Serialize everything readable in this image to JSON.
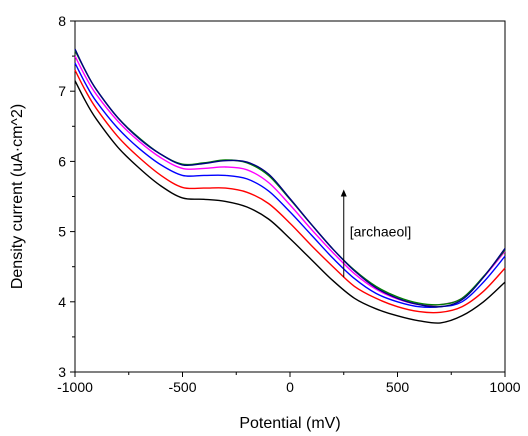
{
  "chart_data": {
    "type": "line",
    "xlabel": "Potential (mV)",
    "ylabel": "Density current (uA·cm^2)",
    "xlim": [
      -1000,
      1000
    ],
    "ylim": [
      3,
      8
    ],
    "x_ticks": [
      -1000,
      -500,
      0,
      500,
      1000
    ],
    "y_ticks": [
      3,
      4,
      5,
      6,
      7,
      8
    ],
    "grid": false,
    "annotation": {
      "text": "[archaeol]",
      "arrow_x": 250,
      "arrow_y_from": 4.35,
      "arrow_y_to": 5.6
    },
    "series": [
      {
        "color": "#000000",
        "x": [
          -1000,
          -950,
          -900,
          -800,
          -700,
          -600,
          -500,
          -400,
          -300,
          -200,
          -100,
          0,
          100,
          200,
          300,
          400,
          500,
          600,
          700,
          800,
          900,
          1000
        ],
        "y": [
          7.15,
          6.85,
          6.6,
          6.2,
          5.9,
          5.65,
          5.48,
          5.46,
          5.43,
          5.35,
          5.18,
          4.9,
          4.6,
          4.3,
          4.05,
          3.9,
          3.8,
          3.73,
          3.7,
          3.8,
          4.0,
          4.28
        ]
      },
      {
        "color": "#ff0000",
        "x": [
          -1000,
          -950,
          -900,
          -800,
          -700,
          -600,
          -500,
          -400,
          -300,
          -200,
          -100,
          0,
          100,
          200,
          300,
          400,
          500,
          600,
          700,
          800,
          900,
          1000
        ],
        "y": [
          7.3,
          7.0,
          6.75,
          6.35,
          6.05,
          5.8,
          5.63,
          5.62,
          5.62,
          5.56,
          5.4,
          5.12,
          4.8,
          4.5,
          4.22,
          4.05,
          3.93,
          3.86,
          3.85,
          3.93,
          4.15,
          4.48
        ]
      },
      {
        "color": "#0000ff",
        "x": [
          -1000,
          -950,
          -900,
          -800,
          -700,
          -600,
          -500,
          -400,
          -300,
          -200,
          -100,
          0,
          100,
          200,
          300,
          400,
          500,
          600,
          700,
          800,
          900,
          1000
        ],
        "y": [
          7.4,
          7.1,
          6.85,
          6.47,
          6.18,
          5.95,
          5.8,
          5.8,
          5.8,
          5.75,
          5.58,
          5.28,
          4.95,
          4.62,
          4.33,
          4.12,
          4.0,
          3.93,
          3.93,
          4.0,
          4.28,
          4.65
        ]
      },
      {
        "color": "#ff00ff",
        "x": [
          -1000,
          -950,
          -900,
          -800,
          -700,
          -600,
          -500,
          -400,
          -300,
          -200,
          -100,
          0,
          100,
          200,
          300,
          400,
          500,
          600,
          700,
          800,
          900,
          1000
        ],
        "y": [
          7.5,
          7.2,
          6.95,
          6.57,
          6.28,
          6.05,
          5.9,
          5.9,
          5.92,
          5.88,
          5.7,
          5.38,
          5.03,
          4.7,
          4.4,
          4.18,
          4.04,
          3.96,
          3.96,
          4.05,
          4.35,
          4.72
        ]
      },
      {
        "color": "#008000",
        "x": [
          -1000,
          -950,
          -900,
          -800,
          -700,
          -600,
          -500,
          -400,
          -300,
          -200,
          -100,
          0,
          100,
          200,
          300,
          400,
          500,
          600,
          700,
          800,
          900,
          1000
        ],
        "y": [
          7.58,
          7.28,
          7.02,
          6.62,
          6.33,
          6.1,
          5.96,
          5.98,
          6.02,
          5.98,
          5.8,
          5.46,
          5.1,
          4.75,
          4.45,
          4.22,
          4.07,
          3.98,
          3.96,
          4.05,
          4.36,
          4.74
        ]
      },
      {
        "color": "#000080",
        "x": [
          -1000,
          -950,
          -900,
          -800,
          -700,
          -600,
          -500,
          -400,
          -300,
          -200,
          -100,
          0,
          100,
          200,
          300,
          400,
          500,
          600,
          700,
          800,
          900,
          1000
        ],
        "y": [
          7.6,
          7.28,
          7.02,
          6.62,
          6.32,
          6.1,
          5.95,
          5.97,
          6.01,
          5.99,
          5.82,
          5.47,
          5.1,
          4.75,
          4.44,
          4.2,
          4.05,
          3.96,
          3.93,
          4.03,
          4.35,
          4.76
        ]
      }
    ]
  }
}
